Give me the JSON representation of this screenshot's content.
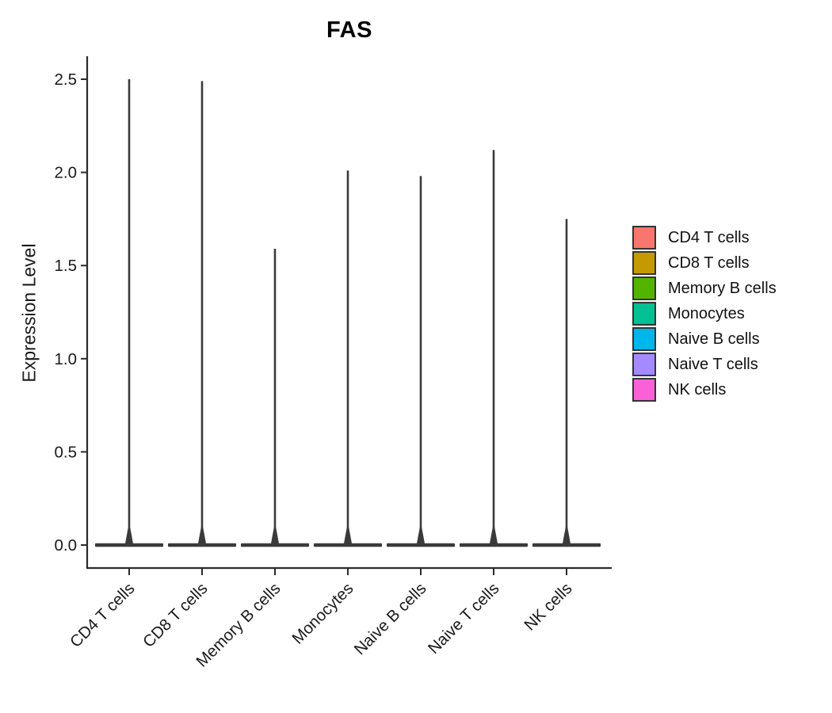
{
  "figure": {
    "title": "FAS",
    "y_axis_label": "Expression Level"
  },
  "chart_data": {
    "type": "violin",
    "title": "FAS",
    "xlabel": "",
    "ylabel": "Expression Level",
    "categories": [
      "CD4 T cells",
      "CD8 T cells",
      "Memory B cells",
      "Monocytes",
      "Naive B cells",
      "Naive T cells",
      "NK cells"
    ],
    "y_tick_labels": [
      "0.0",
      "0.5",
      "1.0",
      "1.5",
      "2.0",
      "2.5"
    ],
    "y_tick_values": [
      0.0,
      0.5,
      1.0,
      1.5,
      2.0,
      2.5
    ],
    "ylim": [
      0,
      2.62
    ],
    "grid": false,
    "legend_position": "right",
    "x_tick_angle_degrees": 45,
    "shape_note": "Each violin collapses to a wide flat bar at expression 0 with a very thin density spike rising to its peak value",
    "series": [
      {
        "name": "CD4 T cells",
        "color": "#F8766D",
        "peak_expression": 2.5,
        "bulk_at": 0.0
      },
      {
        "name": "CD8 T cells",
        "color": "#C49A00",
        "peak_expression": 2.49,
        "bulk_at": 0.0
      },
      {
        "name": "Memory B cells",
        "color": "#53B400",
        "peak_expression": 1.59,
        "bulk_at": 0.0
      },
      {
        "name": "Monocytes",
        "color": "#00C094",
        "peak_expression": 2.01,
        "bulk_at": 0.0
      },
      {
        "name": "Naive B cells",
        "color": "#00B6EB",
        "peak_expression": 1.98,
        "bulk_at": 0.0
      },
      {
        "name": "Naive T cells",
        "color": "#A58AFF",
        "peak_expression": 2.12,
        "bulk_at": 0.0
      },
      {
        "name": "NK cells",
        "color": "#FB61D7",
        "peak_expression": 1.75,
        "bulk_at": 0.0
      }
    ],
    "legend": [
      {
        "label": "CD4 T cells",
        "color": "#F8766D"
      },
      {
        "label": "CD8 T cells",
        "color": "#C49A00"
      },
      {
        "label": "Memory B cells",
        "color": "#53B400"
      },
      {
        "label": "Monocytes",
        "color": "#00C094"
      },
      {
        "label": "Naive B cells",
        "color": "#00B6EB"
      },
      {
        "label": "Naive T cells",
        "color": "#A58AFF"
      },
      {
        "label": "NK cells",
        "color": "#FB61D7"
      }
    ],
    "style_colors": {
      "axis_line": "#2b2b2b",
      "violin_outline": "#3a3a3a",
      "tick_text": "#1a1a1a",
      "background": "#ffffff"
    }
  }
}
